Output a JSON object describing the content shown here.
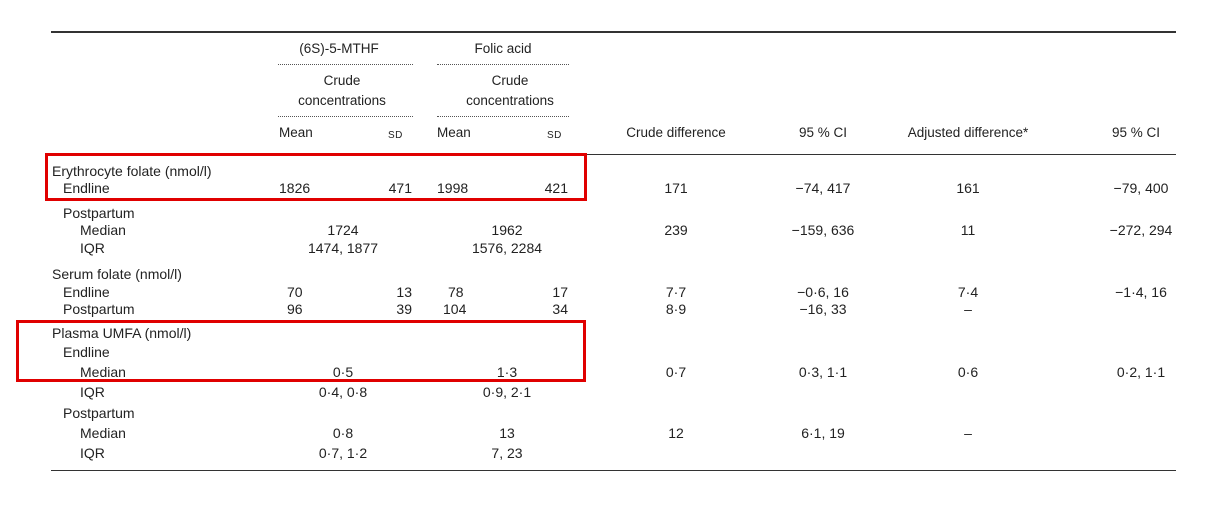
{
  "header": {
    "group1": "(6S)-5-MTHF",
    "group2": "Folic acid",
    "sub1_line1": "Crude",
    "sub1_line2": "concentrations",
    "sub2_line1": "Crude",
    "sub2_line2": "concentrations",
    "mean1": "Mean",
    "sd1": "SD",
    "mean2": "Mean",
    "sd2": "SD",
    "crude_diff": "Crude difference",
    "ci1": "95 % CI",
    "adj_diff": "Adjusted difference*",
    "ci2": "95 % CI"
  },
  "rows": [
    {
      "label": "Erythrocyte folate (nmol/l)",
      "cells": []
    },
    {
      "label": "Endline",
      "cells": [
        "1826",
        "471",
        "1998",
        "421",
        "171",
        "−74, 417",
        "161",
        "−79, 400"
      ]
    },
    {
      "label": "Postpartum",
      "cells": []
    },
    {
      "label": "Median",
      "cells": [
        "1724",
        "1962",
        "239",
        "−159, 636",
        "11",
        "−272, 294"
      ]
    },
    {
      "label": "IQR",
      "cells": [
        "1474, 1877",
        "1576, 2284"
      ]
    },
    {
      "label": "Serum folate (nmol/l)",
      "cells": []
    },
    {
      "label": "Endline",
      "cells": [
        "70",
        "13",
        "78",
        "17",
        "7·7",
        "−0·6, 16",
        "7·4",
        "−1·4, 16"
      ]
    },
    {
      "label": "Postpartum",
      "cells": [
        "96",
        "39",
        "104",
        "34",
        "8·9",
        "−16, 33",
        "–"
      ]
    },
    {
      "label": "Plasma UMFA (nmol/l)",
      "cells": []
    },
    {
      "label": "Endline",
      "cells": []
    },
    {
      "label": "Median",
      "cells": [
        "0·5",
        "1·3",
        "0·7",
        "0·3, 1·1",
        "0·6",
        "0·2, 1·1"
      ]
    },
    {
      "label": "IQR",
      "cells": [
        "0·4, 0·8",
        "0·9, 2·1"
      ]
    },
    {
      "label": "Postpartum",
      "cells": []
    },
    {
      "label": "Median",
      "cells": [
        "0·8",
        "13",
        "12",
        "6·1, 19",
        "–"
      ]
    },
    {
      "label": "IQR",
      "cells": [
        "0·7, 1·2",
        "7, 23"
      ]
    }
  ],
  "highlight_color": "#e00000"
}
